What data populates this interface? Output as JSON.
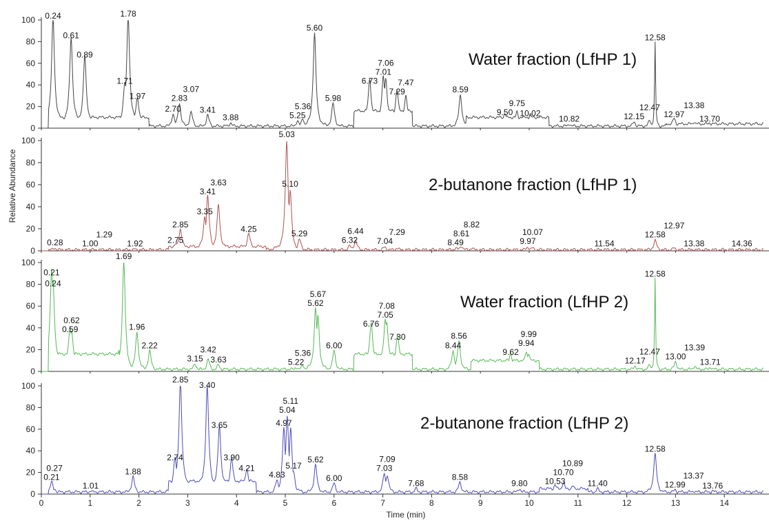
{
  "chart_data": {
    "type": "line",
    "xlabel": "Time (min)",
    "ylabel": "Relative Abundance",
    "xlim": [
      0,
      14.8
    ],
    "ylim": [
      0,
      100
    ],
    "x_ticks": [
      "0",
      "1",
      "2",
      "3",
      "4",
      "5",
      "6",
      "7",
      "8",
      "9",
      "10",
      "11",
      "12",
      "13",
      "14"
    ],
    "y_ticks": [
      "0",
      "20",
      "40",
      "60",
      "80",
      "100"
    ],
    "panels": [
      {
        "title": "Water fraction (LfHP 1)",
        "color": "#444444",
        "peaks": [
          {
            "label": "0.24",
            "x": 0.24,
            "y": 98
          },
          {
            "label": "0.61",
            "x": 0.61,
            "y": 80
          },
          {
            "label": "0.89",
            "x": 0.89,
            "y": 62
          },
          {
            "label": "1.71",
            "x": 1.71,
            "y": 38
          },
          {
            "label": "1.78",
            "x": 1.78,
            "y": 100
          },
          {
            "label": "1.97",
            "x": 1.97,
            "y": 24
          },
          {
            "label": "2.70",
            "x": 2.7,
            "y": 12
          },
          {
            "label": "2.83",
            "x": 2.83,
            "y": 22
          },
          {
            "label": "3.07",
            "x": 3.07,
            "y": 14
          },
          {
            "label": "3.41",
            "x": 3.41,
            "y": 11
          },
          {
            "label": "3.88",
            "x": 3.88,
            "y": 4
          },
          {
            "label": "5.25",
            "x": 5.25,
            "y": 6
          },
          {
            "label": "5.36",
            "x": 5.36,
            "y": 8
          },
          {
            "label": "5.60",
            "x": 5.6,
            "y": 87
          },
          {
            "label": "5.98",
            "x": 5.98,
            "y": 22
          },
          {
            "label": "6.73",
            "x": 6.73,
            "y": 38
          },
          {
            "label": "7.01",
            "x": 7.01,
            "y": 40
          },
          {
            "label": "7.06",
            "x": 7.06,
            "y": 38
          },
          {
            "label": "7.29",
            "x": 7.29,
            "y": 28
          },
          {
            "label": "7.47",
            "x": 7.47,
            "y": 22
          },
          {
            "label": "8.59",
            "x": 8.59,
            "y": 30
          },
          {
            "label": "9.50",
            "x": 9.5,
            "y": 9
          },
          {
            "label": "9.75",
            "x": 9.75,
            "y": 10
          },
          {
            "label": "10.02",
            "x": 10.02,
            "y": 8
          },
          {
            "label": "10.82",
            "x": 10.82,
            "y": 3
          },
          {
            "label": "12.15",
            "x": 12.15,
            "y": 5
          },
          {
            "label": "12.47",
            "x": 12.47,
            "y": 6
          },
          {
            "label": "12.58",
            "x": 12.58,
            "y": 78
          },
          {
            "label": "12.97",
            "x": 12.97,
            "y": 7
          },
          {
            "label": "13.38",
            "x": 13.38,
            "y": 4
          },
          {
            "label": "13.70",
            "x": 13.7,
            "y": 3
          }
        ]
      },
      {
        "title": "2-butanone fraction (LfHP 1)",
        "color": "#b05050",
        "peaks": [
          {
            "label": "0.28",
            "x": 0.28,
            "y": 2
          },
          {
            "label": "1.00",
            "x": 1.0,
            "y": 1
          },
          {
            "label": "1.29",
            "x": 1.29,
            "y": 1
          },
          {
            "label": "1.92",
            "x": 1.92,
            "y": 1
          },
          {
            "label": "2.75",
            "x": 2.75,
            "y": 4
          },
          {
            "label": "2.85",
            "x": 2.85,
            "y": 18
          },
          {
            "label": "3.35",
            "x": 3.35,
            "y": 30
          },
          {
            "label": "3.41",
            "x": 3.41,
            "y": 48
          },
          {
            "label": "3.63",
            "x": 3.63,
            "y": 40
          },
          {
            "label": "4.25",
            "x": 4.25,
            "y": 14
          },
          {
            "label": "5.03",
            "x": 5.03,
            "y": 100
          },
          {
            "label": "5.10",
            "x": 5.1,
            "y": 55
          },
          {
            "label": "5.29",
            "x": 5.29,
            "y": 10
          },
          {
            "label": "6.32",
            "x": 6.32,
            "y": 4
          },
          {
            "label": "6.44",
            "x": 6.44,
            "y": 9
          },
          {
            "label": "7.04",
            "x": 7.04,
            "y": 3
          },
          {
            "label": "7.29",
            "x": 7.29,
            "y": 2
          },
          {
            "label": "8.49",
            "x": 8.49,
            "y": 2
          },
          {
            "label": "8.61",
            "x": 8.61,
            "y": 4
          },
          {
            "label": "8.82",
            "x": 8.82,
            "y": 2
          },
          {
            "label": "9.97",
            "x": 9.97,
            "y": 3
          },
          {
            "label": "10.07",
            "x": 10.07,
            "y": 2
          },
          {
            "label": "11.54",
            "x": 11.54,
            "y": 1
          },
          {
            "label": "12.58",
            "x": 12.58,
            "y": 9
          },
          {
            "label": "12.97",
            "x": 12.97,
            "y": 2
          },
          {
            "label": "13.38",
            "x": 13.38,
            "y": 1
          },
          {
            "label": "14.36",
            "x": 14.36,
            "y": 1
          }
        ]
      },
      {
        "title": "Water fraction (LfHP 2)",
        "color": "#55b855",
        "peaks": [
          {
            "label": "0.21",
            "x": 0.21,
            "y": 85
          },
          {
            "label": "0.24",
            "x": 0.24,
            "y": 75
          },
          {
            "label": "0.59",
            "x": 0.59,
            "y": 33
          },
          {
            "label": "0.62",
            "x": 0.62,
            "y": 30
          },
          {
            "label": "1.69",
            "x": 1.69,
            "y": 100
          },
          {
            "label": "1.96",
            "x": 1.96,
            "y": 35
          },
          {
            "label": "2.22",
            "x": 2.22,
            "y": 18
          },
          {
            "label": "3.15",
            "x": 3.15,
            "y": 6
          },
          {
            "label": "3.42",
            "x": 3.42,
            "y": 10
          },
          {
            "label": "3.63",
            "x": 3.63,
            "y": 5
          },
          {
            "label": "5.22",
            "x": 5.22,
            "y": 3
          },
          {
            "label": "5.36",
            "x": 5.36,
            "y": 5
          },
          {
            "label": "5.62",
            "x": 5.62,
            "y": 57
          },
          {
            "label": "5.67",
            "x": 5.67,
            "y": 50
          },
          {
            "label": "6.00",
            "x": 6.0,
            "y": 18
          },
          {
            "label": "6.76",
            "x": 6.76,
            "y": 38
          },
          {
            "label": "7.05",
            "x": 7.05,
            "y": 40
          },
          {
            "label": "7.08",
            "x": 7.08,
            "y": 38
          },
          {
            "label": "7.30",
            "x": 7.3,
            "y": 26
          },
          {
            "label": "8.44",
            "x": 8.44,
            "y": 18
          },
          {
            "label": "8.56",
            "x": 8.56,
            "y": 27
          },
          {
            "label": "9.62",
            "x": 9.62,
            "y": 12
          },
          {
            "label": "9.94",
            "x": 9.94,
            "y": 13
          },
          {
            "label": "9.99",
            "x": 9.99,
            "y": 12
          },
          {
            "label": "12.17",
            "x": 12.17,
            "y": 4
          },
          {
            "label": "12.47",
            "x": 12.47,
            "y": 5
          },
          {
            "label": "12.58",
            "x": 12.58,
            "y": 84
          },
          {
            "label": "13.00",
            "x": 13.0,
            "y": 8
          },
          {
            "label": "13.39",
            "x": 13.39,
            "y": 4
          },
          {
            "label": "13.71",
            "x": 13.71,
            "y": 3
          }
        ]
      },
      {
        "title": "2-butanone fraction (LfHP 2)",
        "color": "#4a4ab8",
        "peaks": [
          {
            "label": "0.21",
            "x": 0.21,
            "y": 10
          },
          {
            "label": "0.27",
            "x": 0.27,
            "y": 4
          },
          {
            "label": "1.01",
            "x": 1.01,
            "y": 2
          },
          {
            "label": "1.88",
            "x": 1.88,
            "y": 15
          },
          {
            "label": "2.74",
            "x": 2.74,
            "y": 28
          },
          {
            "label": "2.85",
            "x": 2.85,
            "y": 100
          },
          {
            "label": "3.40",
            "x": 3.4,
            "y": 95
          },
          {
            "label": "3.65",
            "x": 3.65,
            "y": 58
          },
          {
            "label": "3.90",
            "x": 3.9,
            "y": 28
          },
          {
            "label": "4.21",
            "x": 4.21,
            "y": 18
          },
          {
            "label": "4.83",
            "x": 4.83,
            "y": 12
          },
          {
            "label": "4.97",
            "x": 4.97,
            "y": 60
          },
          {
            "label": "5.04",
            "x": 5.04,
            "y": 72
          },
          {
            "label": "5.11",
            "x": 5.11,
            "y": 60
          },
          {
            "label": "5.17",
            "x": 5.17,
            "y": 20
          },
          {
            "label": "5.62",
            "x": 5.62,
            "y": 26
          },
          {
            "label": "6.00",
            "x": 6.0,
            "y": 9
          },
          {
            "label": "7.03",
            "x": 7.03,
            "y": 18
          },
          {
            "label": "7.09",
            "x": 7.09,
            "y": 17
          },
          {
            "label": "7.68",
            "x": 7.68,
            "y": 4
          },
          {
            "label": "8.58",
            "x": 8.58,
            "y": 10
          },
          {
            "label": "9.80",
            "x": 9.8,
            "y": 4
          },
          {
            "label": "10.53",
            "x": 10.53,
            "y": 6
          },
          {
            "label": "10.70",
            "x": 10.7,
            "y": 8
          },
          {
            "label": "10.89",
            "x": 10.89,
            "y": 5
          },
          {
            "label": "11.40",
            "x": 11.4,
            "y": 4
          },
          {
            "label": "12.58",
            "x": 12.58,
            "y": 36
          },
          {
            "label": "12.99",
            "x": 12.99,
            "y": 3
          },
          {
            "label": "13.37",
            "x": 13.37,
            "y": 2
          },
          {
            "label": "13.76",
            "x": 13.76,
            "y": 2
          }
        ]
      }
    ]
  }
}
